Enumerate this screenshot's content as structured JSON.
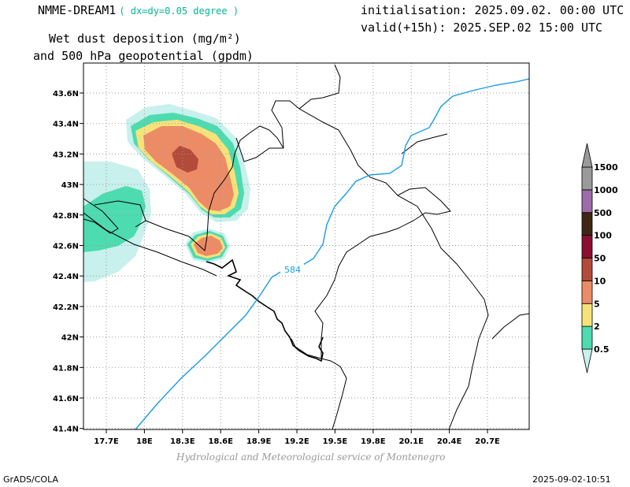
{
  "header": {
    "model": "NMME-DREAM1",
    "resolution": "( dx=dy=0.05 degree )",
    "init_line": "initialisation: 2025.09.02. 00:00 UTC",
    "valid_line": "valid(+15h): 2025.SEP.02 15:00 UTC",
    "variable_line1": "Wet dust deposition (mg/m²)",
    "variable_line2": "and 500 hPa geopotential (gpdm)"
  },
  "map": {
    "lon_ticks": [
      "17.7E",
      "18E",
      "18.3E",
      "18.6E",
      "18.9E",
      "19.2E",
      "19.5E",
      "19.8E",
      "20.1E",
      "20.4E",
      "20.7E"
    ],
    "lat_ticks": [
      "43.6N",
      "43.4N",
      "43.2N",
      "43N",
      "42.8N",
      "42.6N",
      "42.4N",
      "42.2N",
      "42N",
      "41.8N",
      "41.6N",
      "41.4N"
    ],
    "contour_label": "584",
    "contour_color": "#1a9ae6"
  },
  "legend": {
    "levels": [
      "0.5",
      "2",
      "5",
      "10",
      "50",
      "100",
      "500",
      "1000",
      "1500"
    ],
    "colors": [
      "#c8f0ec",
      "#4ddbb0",
      "#f7e27a",
      "#ec8c66",
      "#b34a3a",
      "#8a0f30",
      "#3f2614",
      "#9e6aa8",
      "#9a9a9a"
    ]
  },
  "footer": {
    "credit": "Hydrological and Meteorological service of Montenegro",
    "left": "GrADS/COLA",
    "right": "2025-09-02-10:51"
  }
}
